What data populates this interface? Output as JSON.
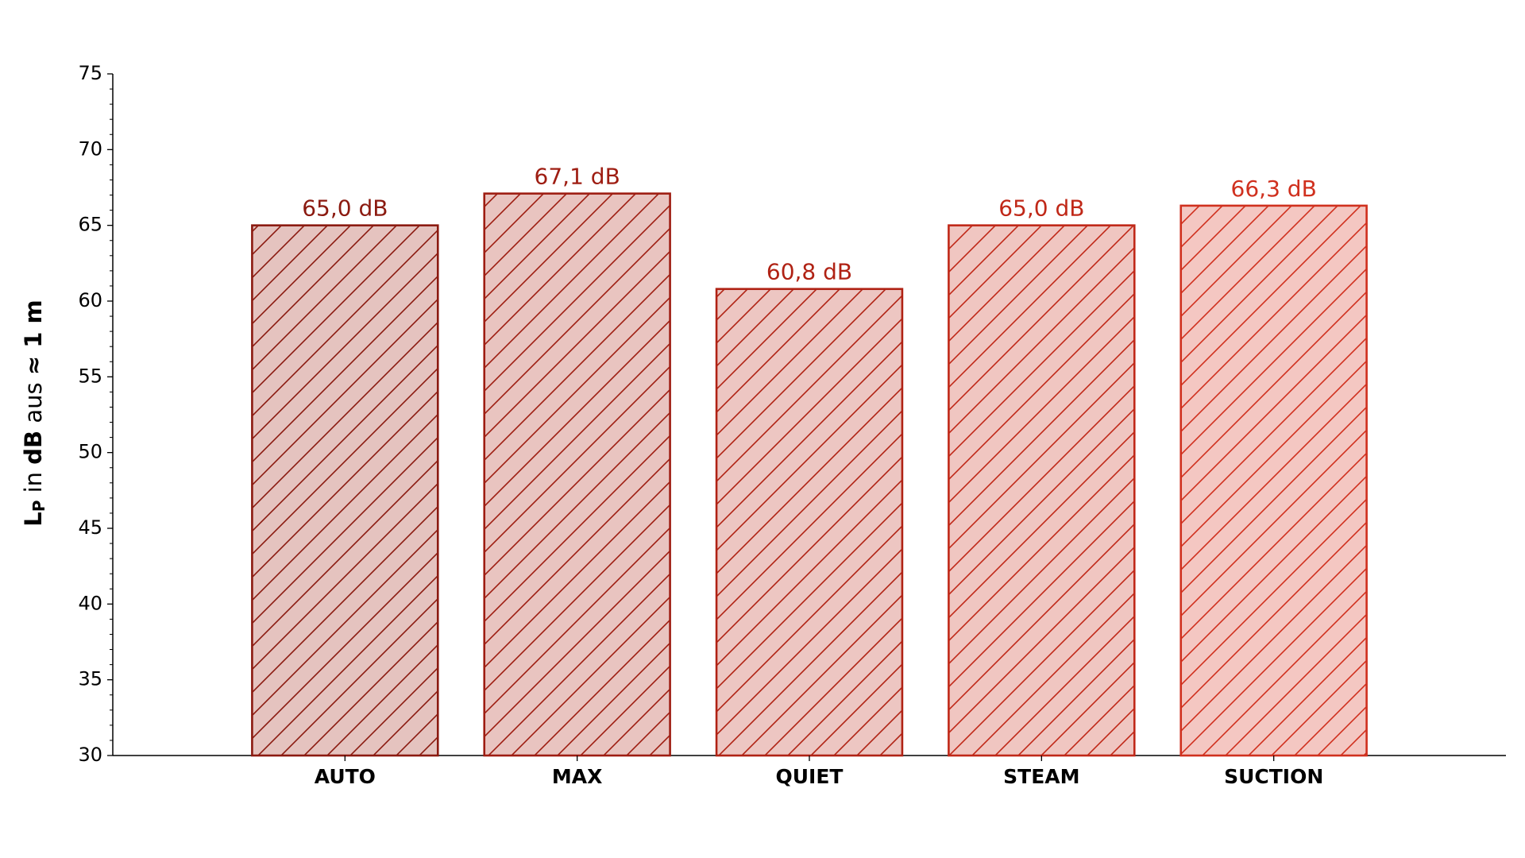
{
  "chart_data": {
    "type": "bar",
    "ylabel": [
      "L",
      "P",
      " in ",
      "dB",
      " aus ",
      "≈ 1 m"
    ],
    "categories": [
      "AUTO",
      "MAX",
      "QUIET",
      "STEAM",
      "SUCTION"
    ],
    "values": [
      65.0,
      67.1,
      60.8,
      65.0,
      66.3
    ],
    "value_labels": [
      "65,0 dB",
      "67,1 dB",
      "60,8 dB",
      "65,0 dB",
      "66,3 dB"
    ],
    "edge_colors": [
      "#8b1a10",
      "#9e1d12",
      "#b02214",
      "#c02818",
      "#d0301e"
    ],
    "fill_colors": [
      "#e5c3bf",
      "#e9c4c0",
      "#edc6c2",
      "#f0c6c1",
      "#f4c7c2"
    ],
    "hatch": "/",
    "ylim": [
      30,
      75
    ],
    "yticks": [
      30,
      35,
      40,
      45,
      50,
      55,
      60,
      65,
      70,
      75
    ],
    "yminorticks": [
      31,
      32,
      33,
      34,
      36,
      37,
      38,
      39,
      41,
      42,
      43,
      44,
      46,
      47,
      48,
      49,
      51,
      52,
      53,
      54,
      56,
      57,
      58,
      59,
      61,
      62,
      63,
      64,
      66,
      67,
      68,
      69,
      71,
      72,
      73,
      74
    ],
    "grid": false
  }
}
